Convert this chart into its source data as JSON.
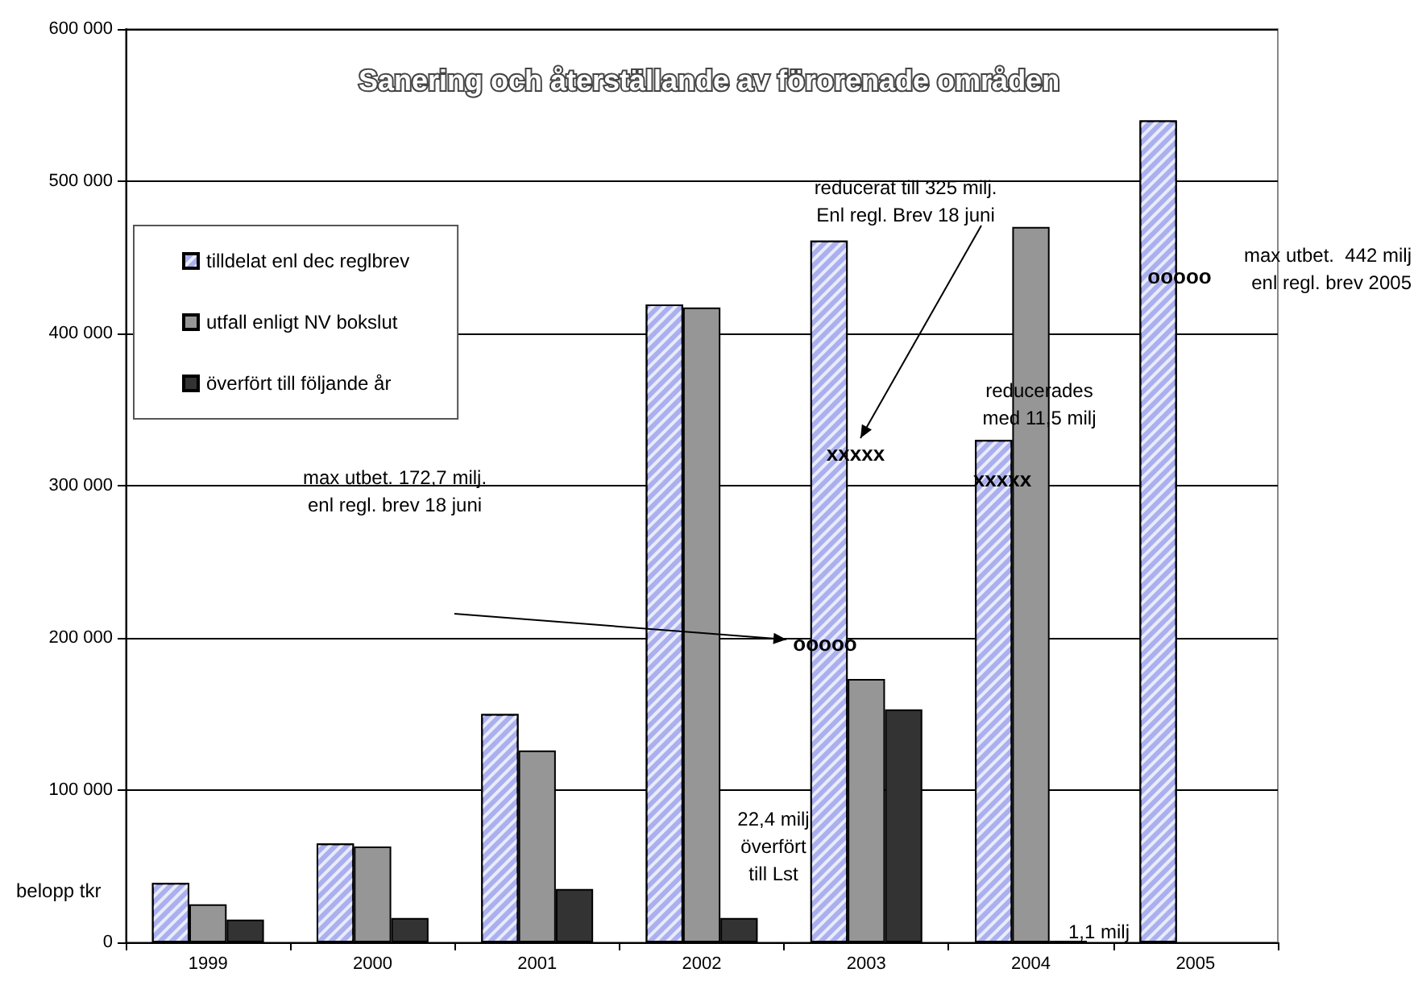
{
  "chart_data": {
    "type": "bar",
    "title": "Sanering och återställande av förorenade områden",
    "ylabel": "belopp tkr",
    "categories": [
      "1999",
      "2000",
      "2001",
      "2002",
      "2003",
      "2004",
      "2005"
    ],
    "series": [
      {
        "name": "tilldelat enl dec reglbrev",
        "color": "#aab0ee",
        "values": [
          39000,
          65000,
          150000,
          419000,
          461000,
          330000,
          540000
        ]
      },
      {
        "name": "utfall enligt NV bokslut",
        "color": "#969696",
        "values": [
          25000,
          63000,
          126000,
          417000,
          173000,
          470000,
          null
        ]
      },
      {
        "name": "överfört till följande år",
        "color": "#333333",
        "values": [
          15000,
          16000,
          35000,
          16000,
          153000,
          1100,
          null
        ]
      }
    ],
    "ylim": [
      0,
      600000
    ],
    "yticks": [
      0,
      100000,
      200000,
      300000,
      400000,
      500000,
      600000
    ],
    "grid": "y",
    "legend": "left",
    "annotations": [
      "reducerat till 325 milj.\nEnl regl. Brev 18 juni",
      "max utbet. 172,7 milj.\nenl regl. brev 18 juni",
      "22,4 milj\növerfört\ntill Lst",
      "reducerades\nmed 11,5 milj",
      "1,1 milj",
      "max utbet.  442 milj\nenl regl. brev 2005",
      "xxxxx",
      "ooooo",
      "xxxxx",
      "ooooo"
    ]
  }
}
